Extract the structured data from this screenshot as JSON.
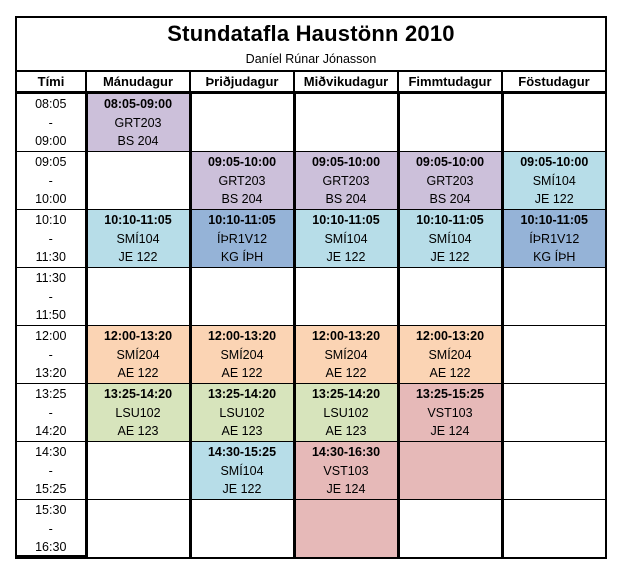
{
  "title": "Stundatafla Haustönn 2010",
  "subtitle": "Daníel Rúnar Jónasson",
  "colors": {
    "purple": "#CCC0DA",
    "lightblue": "#B7DDE8",
    "blue": "#95B3D7",
    "peach": "#FBD4B4",
    "green": "#D7E4BC",
    "pink": "#E6B9B8",
    "white": "#FFFFFF"
  },
  "headers": [
    "Tími",
    "Mánudagur",
    "Þriðjudagur",
    "Miðvikudagur",
    "Fimmtudagur",
    "Föstudagur"
  ],
  "rows": [
    {
      "time": {
        "start": "08:05",
        "sep": "-",
        "end": "09:00"
      },
      "cells": [
        {
          "color": "#CCC0DA",
          "range": "08:05-09:00",
          "course": "GRT203",
          "room": "BS 204"
        },
        {
          "color": "#FFFFFF",
          "range": "",
          "course": "",
          "room": ""
        },
        {
          "color": "#FFFFFF",
          "range": "",
          "course": "",
          "room": ""
        },
        {
          "color": "#FFFFFF",
          "range": "",
          "course": "",
          "room": ""
        },
        {
          "color": "#FFFFFF",
          "range": "",
          "course": "",
          "room": ""
        }
      ]
    },
    {
      "time": {
        "start": "09:05",
        "sep": "-",
        "end": "10:00"
      },
      "cells": [
        {
          "color": "#FFFFFF",
          "range": "",
          "course": "",
          "room": ""
        },
        {
          "color": "#CCC0DA",
          "range": "09:05-10:00",
          "course": "GRT203",
          "room": "BS 204"
        },
        {
          "color": "#CCC0DA",
          "range": "09:05-10:00",
          "course": "GRT203",
          "room": "BS 204"
        },
        {
          "color": "#CCC0DA",
          "range": "09:05-10:00",
          "course": "GRT203",
          "room": "BS 204"
        },
        {
          "color": "#B7DDE8",
          "range": "09:05-10:00",
          "course": "SMÍ104",
          "room": "JE 122"
        }
      ]
    },
    {
      "time": {
        "start": "10:10",
        "sep": "-",
        "end": "11:30"
      },
      "cells": [
        {
          "color": "#B7DDE8",
          "range": "10:10-11:05",
          "course": "SMÍ104",
          "room": "JE 122"
        },
        {
          "color": "#95B3D7",
          "range": "10:10-11:05",
          "course": "ÍÞR1V12",
          "room": "KG ÍÞH"
        },
        {
          "color": "#B7DDE8",
          "range": "10:10-11:05",
          "course": "SMÍ104",
          "room": "JE 122"
        },
        {
          "color": "#B7DDE8",
          "range": "10:10-11:05",
          "course": "SMÍ104",
          "room": "JE 122"
        },
        {
          "color": "#95B3D7",
          "range": "10:10-11:05",
          "course": "ÍÞR1V12",
          "room": "KG ÍÞH"
        }
      ]
    },
    {
      "time": {
        "start": "11:30",
        "sep": "-",
        "end": "11:50"
      },
      "cells": [
        {
          "color": "#FFFFFF",
          "range": "",
          "course": "",
          "room": ""
        },
        {
          "color": "#FFFFFF",
          "range": "",
          "course": "",
          "room": ""
        },
        {
          "color": "#FFFFFF",
          "range": "",
          "course": "",
          "room": ""
        },
        {
          "color": "#FFFFFF",
          "range": "",
          "course": "",
          "room": ""
        },
        {
          "color": "#FFFFFF",
          "range": "",
          "course": "",
          "room": ""
        }
      ]
    },
    {
      "time": {
        "start": "12:00",
        "sep": "-",
        "end": "13:20"
      },
      "cells": [
        {
          "color": "#FBD4B4",
          "range": "12:00-13:20",
          "course": "SMÍ204",
          "room": "AE 122"
        },
        {
          "color": "#FBD4B4",
          "range": "12:00-13:20",
          "course": "SMÍ204",
          "room": "AE 122"
        },
        {
          "color": "#FBD4B4",
          "range": "12:00-13:20",
          "course": "SMÍ204",
          "room": "AE 122"
        },
        {
          "color": "#FBD4B4",
          "range": "12:00-13:20",
          "course": "SMÍ204",
          "room": "AE 122"
        },
        {
          "color": "#FFFFFF",
          "range": "",
          "course": "",
          "room": ""
        }
      ]
    },
    {
      "time": {
        "start": "13:25",
        "sep": "-",
        "end": "14:20"
      },
      "cells": [
        {
          "color": "#D7E4BC",
          "range": "13:25-14:20",
          "course": "LSU102",
          "room": "AE 123"
        },
        {
          "color": "#D7E4BC",
          "range": "13:25-14:20",
          "course": "LSU102",
          "room": "AE 123"
        },
        {
          "color": "#D7E4BC",
          "range": "13:25-14:20",
          "course": "LSU102",
          "room": "AE 123"
        },
        {
          "color": "#E6B9B8",
          "range": "13:25-15:25",
          "course": "VST103",
          "room": "JE 124"
        },
        {
          "color": "#FFFFFF",
          "range": "",
          "course": "",
          "room": ""
        }
      ]
    },
    {
      "time": {
        "start": "14:30",
        "sep": "-",
        "end": "15:25"
      },
      "cells": [
        {
          "color": "#FFFFFF",
          "range": "",
          "course": "",
          "room": ""
        },
        {
          "color": "#B7DDE8",
          "range": "14:30-15:25",
          "course": "SMÍ104",
          "room": "JE 122"
        },
        {
          "color": "#E6B9B8",
          "range": "14:30-16:30",
          "course": "VST103",
          "room": "JE 124"
        },
        {
          "color": "#E6B9B8",
          "range": "",
          "course": "",
          "room": ""
        },
        {
          "color": "#FFFFFF",
          "range": "",
          "course": "",
          "room": ""
        }
      ]
    },
    {
      "time": {
        "start": "15:30",
        "sep": "-",
        "end": "16:30"
      },
      "cells": [
        {
          "color": "#FFFFFF",
          "range": "",
          "course": "",
          "room": ""
        },
        {
          "color": "#FFFFFF",
          "range": "",
          "course": "",
          "room": ""
        },
        {
          "color": "#E6B9B8",
          "range": "",
          "course": "",
          "room": ""
        },
        {
          "color": "#FFFFFF",
          "range": "",
          "course": "",
          "room": ""
        },
        {
          "color": "#FFFFFF",
          "range": "",
          "course": "",
          "room": ""
        }
      ]
    }
  ]
}
